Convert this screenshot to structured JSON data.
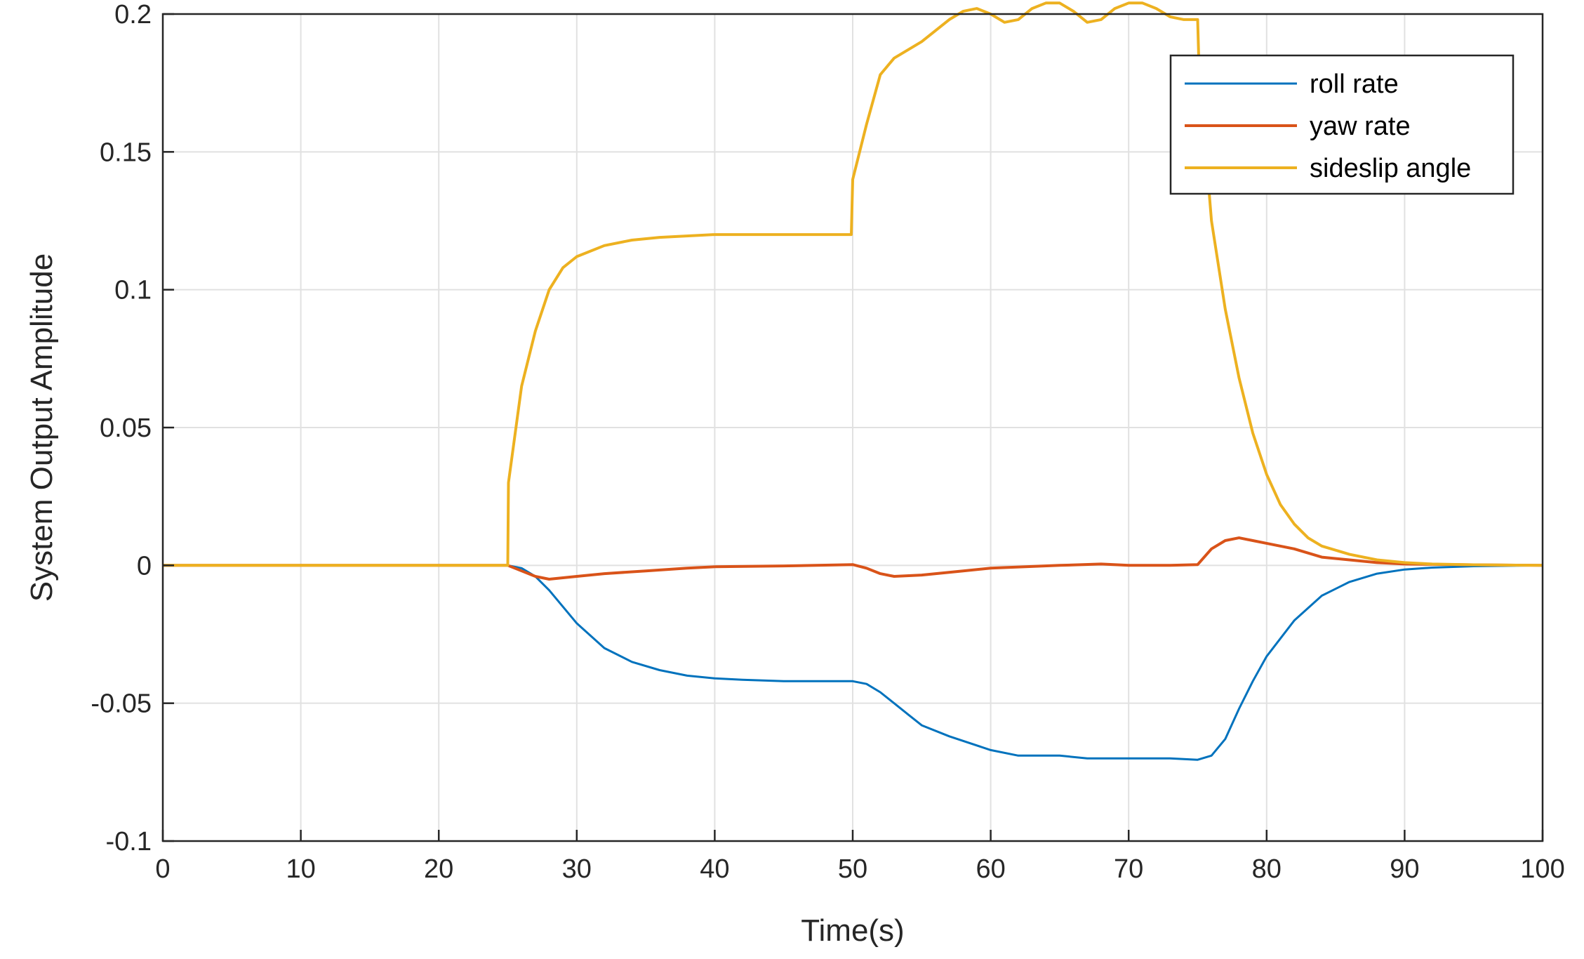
{
  "chart_data": {
    "type": "line",
    "xlabel": "Time(s)",
    "ylabel": "System Output Amplitude",
    "xlim": [
      0,
      100
    ],
    "ylim": [
      -0.1,
      0.2
    ],
    "grid": true,
    "legend_position": "top-right",
    "x_ticks": [
      0,
      10,
      20,
      30,
      40,
      50,
      60,
      70,
      80,
      90,
      100
    ],
    "x_tick_labels": [
      "0",
      "10",
      "20",
      "30",
      "40",
      "50",
      "60",
      "70",
      "80",
      "90",
      "100"
    ],
    "y_ticks": [
      -0.1,
      -0.05,
      0,
      0.05,
      0.1,
      0.15,
      0.2
    ],
    "y_tick_labels": [
      "-0.1",
      "-0.05",
      "0",
      "0.05",
      "0.1",
      "0.15",
      "0.2"
    ],
    "series": [
      {
        "name": "roll rate",
        "color": "#0072BD",
        "x": [
          0,
          25,
          26,
          27,
          28,
          29,
          30,
          32,
          34,
          36,
          38,
          40,
          42,
          45,
          48,
          50,
          51,
          52,
          53,
          54,
          55,
          57,
          60,
          62,
          65,
          67,
          70,
          73,
          75,
          76,
          77,
          78,
          79,
          80,
          82,
          84,
          86,
          88,
          90,
          92,
          95,
          100
        ],
        "y": [
          0,
          0,
          -0.001,
          -0.004,
          -0.009,
          -0.015,
          -0.021,
          -0.03,
          -0.035,
          -0.038,
          -0.04,
          -0.041,
          -0.0415,
          -0.042,
          -0.042,
          -0.042,
          -0.043,
          -0.046,
          -0.05,
          -0.054,
          -0.058,
          -0.062,
          -0.067,
          -0.069,
          -0.069,
          -0.07,
          -0.07,
          -0.07,
          -0.0705,
          -0.069,
          -0.063,
          -0.052,
          -0.042,
          -0.033,
          -0.02,
          -0.011,
          -0.006,
          -0.003,
          -0.0015,
          -0.0008,
          -0.0003,
          0
        ]
      },
      {
        "name": "yaw rate",
        "color": "#D95319",
        "x": [
          0,
          25,
          26,
          27,
          28,
          30,
          32,
          35,
          38,
          40,
          45,
          50,
          51,
          52,
          53,
          55,
          58,
          60,
          65,
          68,
          70,
          73,
          75,
          76,
          77,
          78,
          79,
          80,
          82,
          84,
          86,
          88,
          90,
          95,
          100
        ],
        "y": [
          0,
          0,
          -0.002,
          -0.004,
          -0.005,
          -0.004,
          -0.003,
          -0.002,
          -0.001,
          -0.0005,
          -0.0002,
          0.0003,
          -0.001,
          -0.003,
          -0.004,
          -0.0035,
          -0.002,
          -0.001,
          0,
          0.0005,
          0,
          0,
          0.0003,
          0.006,
          0.009,
          0.01,
          0.009,
          0.008,
          0.006,
          0.003,
          0.002,
          0.001,
          0.0005,
          0.0002,
          0
        ]
      },
      {
        "name": "sideslip angle",
        "color": "#EDB120",
        "x": [
          0,
          25,
          25.05,
          26,
          27,
          28,
          29,
          30,
          32,
          34,
          36,
          40,
          45,
          49.9,
          50,
          51,
          52,
          53,
          55,
          57,
          58,
          59,
          60,
          61,
          62,
          63,
          64,
          65,
          66,
          67,
          68,
          69,
          70,
          71,
          72,
          73,
          74,
          75,
          75.1,
          76,
          77,
          78,
          79,
          80,
          81,
          82,
          83,
          84,
          86,
          88,
          90,
          92,
          95,
          100
        ],
        "y": [
          0,
          0,
          0.03,
          0.065,
          0.085,
          0.1,
          0.108,
          0.112,
          0.116,
          0.118,
          0.119,
          0.12,
          0.12,
          0.12,
          0.14,
          0.16,
          0.178,
          0.184,
          0.19,
          0.198,
          0.201,
          0.202,
          0.2,
          0.197,
          0.198,
          0.202,
          0.204,
          0.204,
          0.201,
          0.197,
          0.198,
          0.202,
          0.204,
          0.204,
          0.202,
          0.199,
          0.198,
          0.198,
          0.18,
          0.125,
          0.093,
          0.068,
          0.048,
          0.033,
          0.022,
          0.015,
          0.01,
          0.007,
          0.004,
          0.002,
          0.001,
          0.0005,
          0.0002,
          0
        ]
      }
    ]
  }
}
